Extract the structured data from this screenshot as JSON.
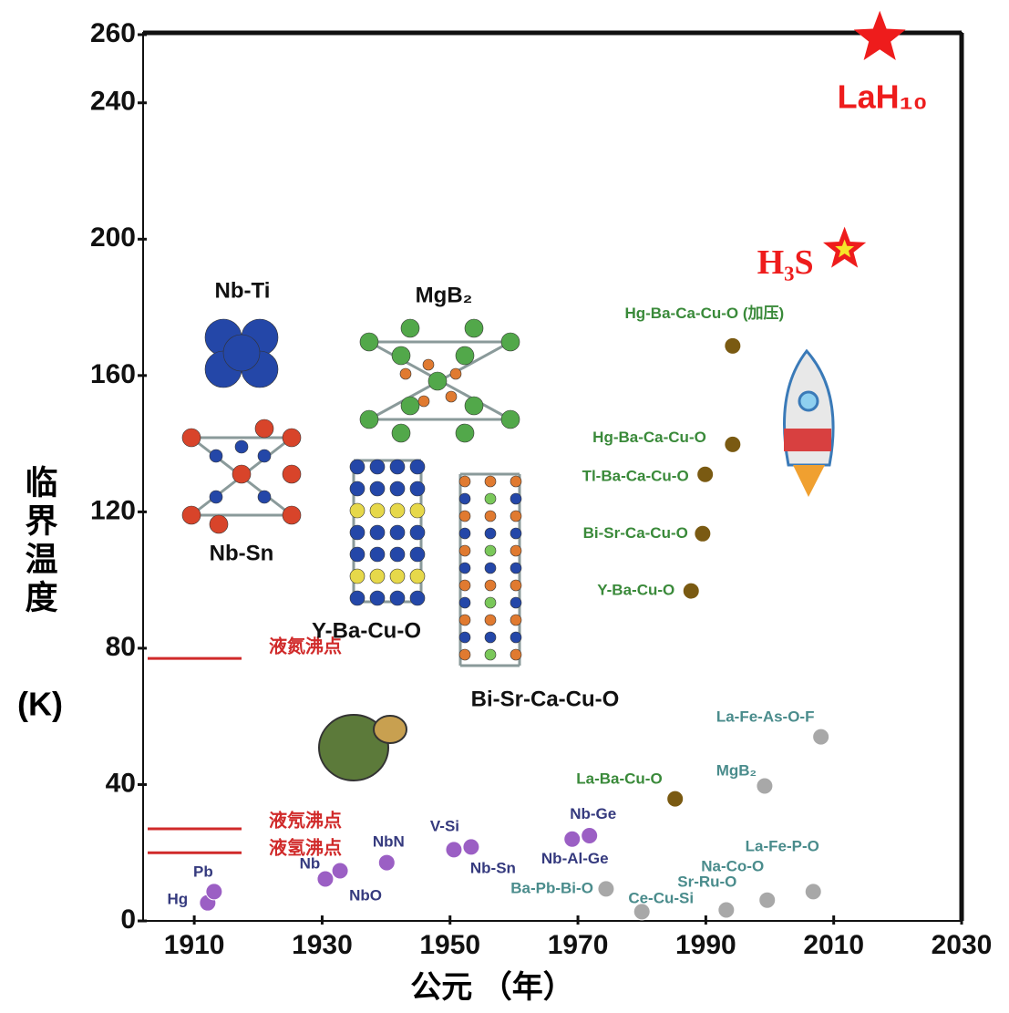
{
  "chart_data": {
    "type": "scatter",
    "xlabel": "公元 （年）",
    "ylabel": [
      "临界温度",
      "(K)"
    ],
    "xlim": [
      1902,
      2030
    ],
    "ylim": [
      0,
      260
    ],
    "xticks": [
      1910,
      1930,
      1950,
      1970,
      1990,
      2010,
      2030
    ],
    "yticks": [
      0,
      40,
      80,
      120,
      160,
      200,
      240,
      260
    ],
    "reference_lines": [
      {
        "value": 77,
        "label": "液氮沸点"
      },
      {
        "value": 27,
        "label": "液氖沸点"
      },
      {
        "value": 20,
        "label": "液氢沸点"
      }
    ],
    "annotations": [
      "Nb-Ti",
      "MgB₂",
      "Nb-Sn",
      "Y-Ba-Cu-O",
      "Bi-Sr-Ca-Cu-O"
    ],
    "series": [
      {
        "color": "#9b5fc4",
        "label_color": "#353a7e",
        "x": [
          1912.1,
          1913.1,
          1930.5,
          1932.8,
          1940.1,
          1950.6,
          1953.3,
          1969.1,
          1971.8
        ],
        "values": [
          5.3,
          8.6,
          12.3,
          14.7,
          17.1,
          20.9,
          21.7,
          24,
          25
        ],
        "labels": [
          "Hg",
          "Pb",
          "Nb",
          "NbO",
          "NbN",
          "V-Si",
          "Nb-Sn",
          "Nb-Al-Ge",
          "Nb-Ge"
        ]
      },
      {
        "color": "#7a5a12",
        "label_color": "#3a8a3a",
        "x": [
          1985.2,
          1987.7,
          1989.5,
          1989.9,
          1994.2,
          1994.2
        ],
        "values": [
          35.8,
          96.8,
          113.6,
          131,
          139.8,
          168.7
        ],
        "labels": [
          "La-Ba-Cu-O",
          "Y-Ba-Cu-O",
          "Bi-Sr-Ca-Cu-O",
          "Tl-Ba-Ca-Cu-O",
          "Hg-Ba-Ca-Cu-O",
          "Hg-Ba-Ca-Cu-O (加压)"
        ]
      },
      {
        "color": "#a8a8a8",
        "label_color": "#4a8c8c",
        "x": [
          1974.4,
          1980,
          1993.2,
          1999.6,
          2006.8,
          1999.2,
          2008
        ],
        "values": [
          9.4,
          2.7,
          3.2,
          6.1,
          8.6,
          39.6,
          54
        ],
        "labels": [
          "Ba-Pb-Bi-O",
          "Ce-Cu-Si",
          "Sr-Ru-O",
          "Na-Co-O",
          "La-Fe-P-O",
          "MgB₂",
          "La-Fe-As-O-F"
        ]
      },
      {
        "color": "#ee1c1c",
        "label_color": "#ee1c1c",
        "marker": "star",
        "x": [
          2011.7,
          2017.2
        ],
        "values": [
          197,
          259
        ],
        "labels": [
          "H₃S",
          "LaH₁₀"
        ]
      }
    ]
  }
}
